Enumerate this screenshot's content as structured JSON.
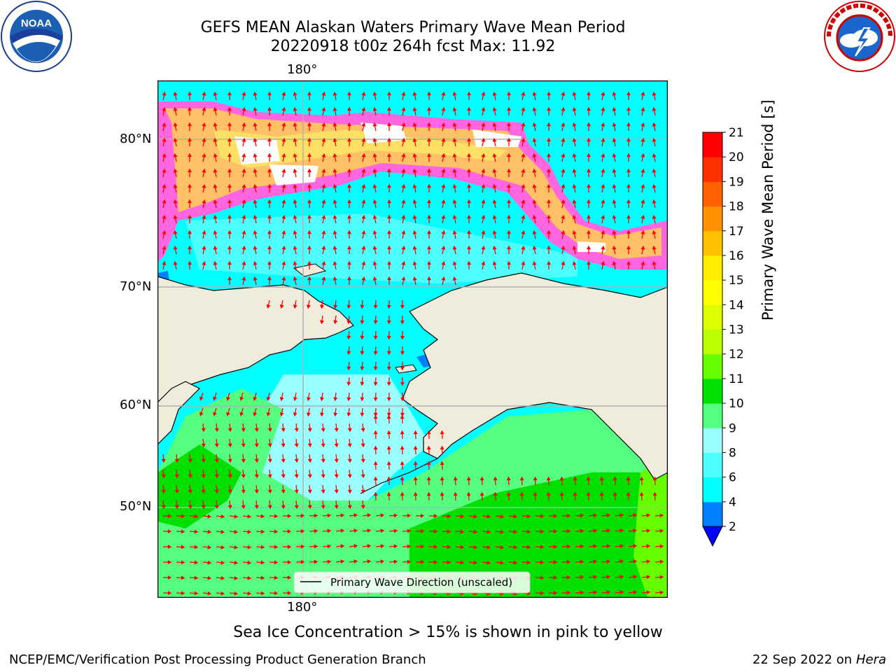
{
  "title": {
    "line1": "GEFS MEAN Alaskan Waters Primary Wave Mean Period",
    "line2": "20220918 t00z 264h fcst   Max: 11.92"
  },
  "logos": {
    "left": {
      "icon": "noaa-logo",
      "text": "NOAA",
      "ring_text": "NATIONAL OCEANIC AND ATMOSPHERIC ADMINISTRATION · U.S. DEPARTMENT OF COMMERCE"
    },
    "right": {
      "icon": "nws-logo",
      "ring_text": "NATIONAL WEATHER SERVICE"
    }
  },
  "map": {
    "lon_label_top": "180°",
    "lon_label_bottom": "180°",
    "lat_labels": [
      "80°N",
      "70°N",
      "60°N",
      "50°N"
    ],
    "legend": "Primary Wave Direction (unscaled)",
    "colors": {
      "land": "#efecdc",
      "arrow": "#ff0000",
      "ice_pink": "#ff66e0",
      "ice_orange": "#ffc066",
      "ice_yellow": "#ffe066"
    }
  },
  "colorbar": {
    "label": "Primary Wave Mean Period [s]",
    "ticks": [
      "2",
      "4",
      "6",
      "8",
      "9",
      "10",
      "11",
      "12",
      "13",
      "14",
      "15",
      "16",
      "17",
      "18",
      "19",
      "20",
      "21"
    ],
    "colors": [
      "#0080ff",
      "#00ffff",
      "#4dffff",
      "#99ffff",
      "#55ff80",
      "#00e000",
      "#66ff00",
      "#bbff00",
      "#ddff00",
      "#ffff00",
      "#ffee00",
      "#ffc000",
      "#ff9000",
      "#ff6000",
      "#ff3000",
      "#ff0000"
    ],
    "extend_color": "#0000ff"
  },
  "caption": "Sea Ice Concentration > 15% is shown in pink to yellow",
  "footer": {
    "left": "NCEP/EMC/Verification Post Processing Product Generation Branch",
    "right_date": "22 Sep 2022 on",
    "right_host": "Hera"
  }
}
